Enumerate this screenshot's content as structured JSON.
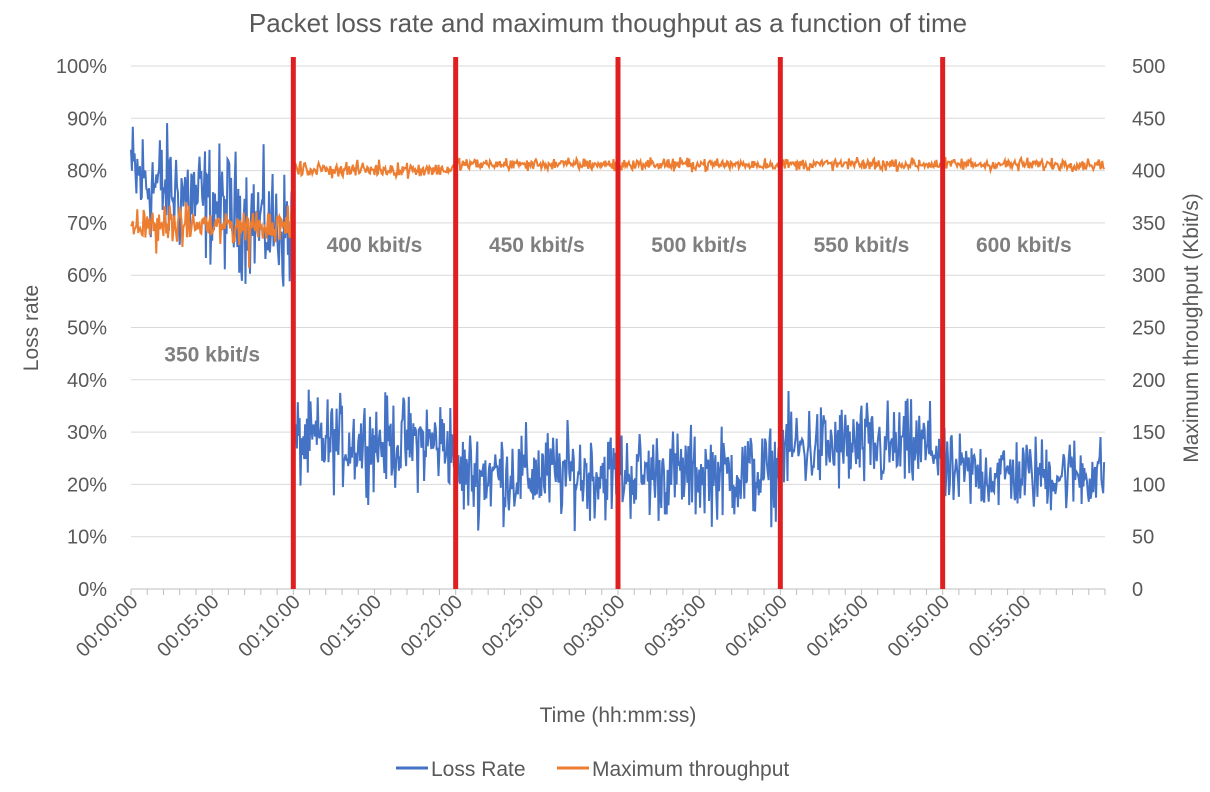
{
  "chart_data": {
    "type": "line",
    "title": "Packet loss rate and maximum thoughput as a function of time",
    "xlabel": "Time (hh:mm:ss)",
    "ylabel": "Loss rate",
    "y2label": "Maximum throughput (Kbit/s)",
    "xlim_minutes": [
      0,
      60
    ],
    "ylim": [
      0,
      100
    ],
    "y2lim": [
      0,
      500
    ],
    "x_ticks": [
      "00:00:00",
      "00:05:00",
      "00:10:00",
      "00:15:00",
      "00:20:00",
      "00:25:00",
      "00:30:00",
      "00:35:00",
      "00:40:00",
      "00:45:00",
      "00:50:00",
      "00:55:00"
    ],
    "y_ticks": [
      "0%",
      "10%",
      "20%",
      "30%",
      "40%",
      "50%",
      "60%",
      "70%",
      "80%",
      "90%",
      "100%"
    ],
    "y2_ticks": [
      "0",
      "50",
      "100",
      "150",
      "200",
      "250",
      "300",
      "350",
      "400",
      "450",
      "500"
    ],
    "grid": true,
    "legend": "bottom",
    "colors": {
      "loss": "#4472c4",
      "throughput": "#ed7d31",
      "divider": "#e02020",
      "grid": "#d9d9d9"
    },
    "dividers_minutes": [
      10,
      20,
      30,
      40,
      50
    ],
    "annotations": [
      {
        "text": "350 kbit/s",
        "x_minutes": 5,
        "y_percent": 45
      },
      {
        "text": "400 kbit/s",
        "x_minutes": 15,
        "y_percent": 66
      },
      {
        "text": "450 kbit/s",
        "x_minutes": 25,
        "y_percent": 66
      },
      {
        "text": "500 kbit/s",
        "x_minutes": 35,
        "y_percent": 66
      },
      {
        "text": "550 kbit/s",
        "x_minutes": 45,
        "y_percent": 66
      },
      {
        "text": "600 kbit/s",
        "x_minutes": 55,
        "y_percent": 66
      }
    ],
    "series": [
      {
        "name": "Loss Rate",
        "axis": "left",
        "color": "#4472c4",
        "segments": [
          {
            "x_start": 0,
            "x_end": 10,
            "mean": 73,
            "amplitude": 8,
            "start": 84
          },
          {
            "x_start": 10,
            "x_end": 20,
            "mean": 28,
            "amplitude": 6,
            "start": 40
          },
          {
            "x_start": 20,
            "x_end": 30,
            "mean": 22,
            "amplitude": 6
          },
          {
            "x_start": 30,
            "x_end": 40,
            "mean": 22,
            "amplitude": 6
          },
          {
            "x_start": 40,
            "x_end": 50,
            "mean": 27,
            "amplitude": 6
          },
          {
            "x_start": 50,
            "x_end": 60,
            "mean": 22,
            "amplitude": 5
          }
        ]
      },
      {
        "name": "Maximum throughput",
        "axis": "right",
        "color": "#ed7d31",
        "segments": [
          {
            "x_start": 0,
            "x_end": 10,
            "mean": 348,
            "amplitude": 12
          },
          {
            "x_start": 10,
            "x_end": 20,
            "mean": 401,
            "amplitude": 5
          },
          {
            "x_start": 20,
            "x_end": 30,
            "mean": 406,
            "amplitude": 4
          },
          {
            "x_start": 30,
            "x_end": 40,
            "mean": 406,
            "amplitude": 4
          },
          {
            "x_start": 40,
            "x_end": 50,
            "mean": 406,
            "amplitude": 4
          },
          {
            "x_start": 50,
            "x_end": 60,
            "mean": 406,
            "amplitude": 4
          }
        ]
      }
    ]
  }
}
